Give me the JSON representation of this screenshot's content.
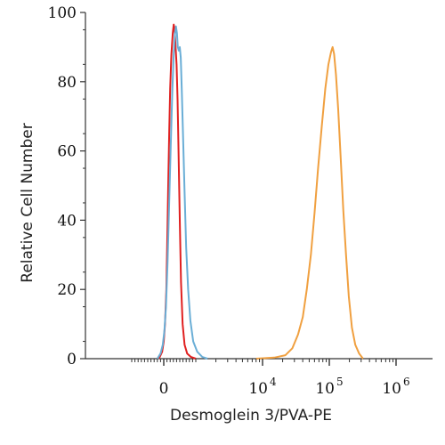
{
  "chart_data": {
    "type": "line",
    "title": "",
    "xlabel": "Desmoglein 3/PVA-PE",
    "ylabel": "Relative Cell Number",
    "x_scale": "biexponential",
    "xlim": [
      -1000,
      1000000
    ],
    "ylim": [
      0,
      100
    ],
    "y_ticks": [
      0,
      20,
      40,
      60,
      80,
      100
    ],
    "y_tick_labels": [
      "0",
      "20",
      "40",
      "60",
      "80",
      "100"
    ],
    "x_tick_labels": [
      {
        "value": 0,
        "base": "0",
        "exp": ""
      },
      {
        "value": 10000,
        "base": "10",
        "exp": "4"
      },
      {
        "value": 100000,
        "base": "10",
        "exp": "5"
      },
      {
        "value": 1000000,
        "base": "10",
        "exp": "6"
      }
    ],
    "grid": false,
    "legend": "none",
    "series": [
      {
        "color": "#e02020",
        "points": [
          [
            -150,
            0
          ],
          [
            -50,
            2
          ],
          [
            0,
            5
          ],
          [
            40,
            10
          ],
          [
            80,
            20
          ],
          [
            110,
            35
          ],
          [
            140,
            50
          ],
          [
            170,
            65
          ],
          [
            200,
            78
          ],
          [
            240,
            88
          ],
          [
            280,
            94
          ],
          [
            310,
            96.5
          ],
          [
            340,
            95
          ],
          [
            370,
            90
          ],
          [
            400,
            85
          ],
          [
            430,
            75
          ],
          [
            460,
            60
          ],
          [
            500,
            40
          ],
          [
            540,
            22
          ],
          [
            590,
            10
          ],
          [
            650,
            4
          ],
          [
            730,
            1.5
          ],
          [
            850,
            0.5
          ],
          [
            1000,
            0
          ]
        ]
      },
      {
        "color": "#6aaed6",
        "points": [
          [
            -200,
            0
          ],
          [
            -100,
            1.5
          ],
          [
            -30,
            4
          ],
          [
            20,
            8
          ],
          [
            70,
            15
          ],
          [
            120,
            28
          ],
          [
            170,
            45
          ],
          [
            220,
            62
          ],
          [
            270,
            78
          ],
          [
            310,
            88
          ],
          [
            350,
            94
          ],
          [
            380,
            96
          ],
          [
            410,
            94
          ],
          [
            440,
            90
          ],
          [
            470,
            89
          ],
          [
            500,
            90
          ],
          [
            530,
            87
          ],
          [
            560,
            78
          ],
          [
            600,
            65
          ],
          [
            650,
            48
          ],
          [
            700,
            32
          ],
          [
            760,
            20
          ],
          [
            830,
            11
          ],
          [
            920,
            5
          ],
          [
            1050,
            2
          ],
          [
            1250,
            0.5
          ],
          [
            1500,
            0
          ]
        ]
      },
      {
        "color": "#f0a040",
        "points": [
          [
            8000,
            0
          ],
          [
            15000,
            0.3
          ],
          [
            22000,
            1
          ],
          [
            28000,
            3
          ],
          [
            34000,
            7
          ],
          [
            40000,
            12
          ],
          [
            46000,
            20
          ],
          [
            53000,
            30
          ],
          [
            60000,
            42
          ],
          [
            68000,
            55
          ],
          [
            77000,
            67
          ],
          [
            87000,
            78
          ],
          [
            97000,
            85
          ],
          [
            106000,
            88.5
          ],
          [
            112000,
            90
          ],
          [
            118000,
            88
          ],
          [
            126000,
            82
          ],
          [
            136000,
            72
          ],
          [
            148000,
            58
          ],
          [
            162000,
            43
          ],
          [
            178000,
            30
          ],
          [
            196000,
            18
          ],
          [
            218000,
            9
          ],
          [
            245000,
            4
          ],
          [
            280000,
            1.5
          ],
          [
            320000,
            0
          ]
        ]
      }
    ]
  }
}
